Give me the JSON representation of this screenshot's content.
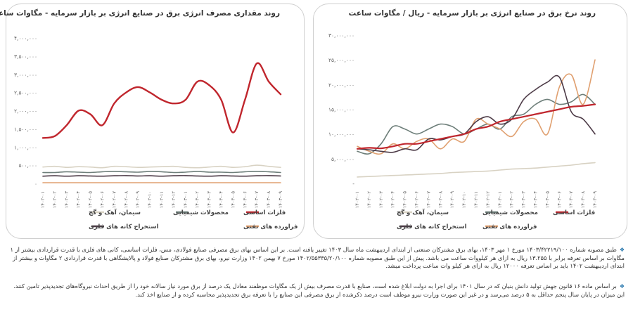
{
  "charts": {
    "left": {
      "title": "روند مقداری مصرف انرژی برق در صنایع انرژی بر بازار سرمایه - مگاوات ساعت"
    },
    "right": {
      "title": "روند نرخ برق در صنایع انرژی بر بازار سرمایه - ریال / مگاوات ساعت"
    }
  },
  "notes": {
    "note1": "طبق مصوبه شماره ۱۴۰۳/۴۲۲۱۹/۱۰۰ مورخ ۱ مهر ۱۴۰۳، بهای برق مشترکان صنعتی از ابتدای اردیبهشت ماه سال ۱۴۰۳ تغییر یافته است. بر این اساس بهای برق مصرفی صنایع فولادی، مس، فلزات اساسی، کانی های فلزی با قدرت قراردادی بیشتر از ۱ مگاوات بر اساس تعرفه برابر با ۱۳.۲۵۵ ریال به ازای هر کیلووات ساعت می باشد. پیش از این طبق مصوبه شماره ۱۴۰۲/۵۵۳۳۵/۲۰/۱۰۰ مورخ ۷ بهمن ۱۴۰۲ وزارت نیرو، بهای برق مشترکان صنایع فولاد و پالایشگاهی با قدرت قراردادی ۲ مگاوات و بیشتر از ابتدای اردیبهشت ۱۴۰۲ باید بر اساس تعرفه ۱۲۰۰۰ ریال به ازای هر کیلو وات ساعت پرداخت میشد.",
    "note2": "بر اساس ماده ۱۶ قانون جهش تولید دانش بنیان که در سال ۱۴۰۱ برای اجرا به دولت ابلاغ شده است، صنایع با قدرت مصرف بیش از یک مگاوات موظفند معادل یک درصد از برق مورد نیاز سالانه خود را از طریق احداث نیروگاه‌های تجدیدپذیر تامین کنند. این میزان در پایان سال پنجم حداقل به ۵ درصد می‌رسد و در غیر این صورت وزارت نیرو موظف است درصد ذکرشده از برق مصرفی این صنایع را با تعرفه برق تجدیدپذیر محاسبه کرده و از صنایع اخذ کند."
  },
  "chart_data": [
    {
      "type": "line",
      "title": "روند مقداری مصرف انرژی برق در صنایع انرژی بر بازار سرمایه - مگاوات ساعت",
      "x": [
        "۱۴۰۲-۰۱",
        "۱۴۰۲-۰۲",
        "۱۴۰۲-۰۳",
        "۱۴۰۲-۰۴",
        "۱۴۰۲-۰۵",
        "۱۴۰۲-۰۶",
        "۱۴۰۲-۰۷",
        "۱۴۰۲-۰۸",
        "۱۴۰۲-۰۹",
        "۱۴۰۲-۱۰",
        "۱۴۰۲-۱۱",
        "۱۴۰۲-۱۲",
        "۱۴۰۳-۰۱",
        "۱۴۰۳-۰۲",
        "۱۴۰۳-۰۳",
        "۱۴۰۳-۰۴",
        "۱۴۰۳-۰۵",
        "۱۴۰۳-۰۶",
        "۱۴۰۳-۰۷",
        "۱۴۰۳-۰۸",
        "۱۴۰۳-۰۹"
      ],
      "y_ticks": [
        "۰",
        "۵۰۰,۰۰۰",
        "۱,۰۰۰,۰۰۰",
        "۱,۵۰۰,۰۰۰",
        "۲,۰۰۰,۰۰۰",
        "۲,۵۰۰,۰۰۰",
        "۳,۰۰۰,۰۰۰",
        "۳,۵۰۰,۰۰۰",
        "۴,۰۰۰,۰۰۰"
      ],
      "ylim": [
        0,
        4000000
      ],
      "grid": false,
      "legend_position": "bottom",
      "series": [
        {
          "name": "فلزات اساسی",
          "color": "#c0262d",
          "width": 2.4,
          "values": [
            1250000,
            1300000,
            1600000,
            2000000,
            1900000,
            1600000,
            2200000,
            2500000,
            2650000,
            2500000,
            2300000,
            2200000,
            2300000,
            2800000,
            2700000,
            2300000,
            1400000,
            2300000,
            3300000,
            2800000,
            2450000
          ]
        },
        {
          "name": "محصولات شیمیایی",
          "color": "#6e7f7a",
          "width": 1.6,
          "values": [
            300000,
            300000,
            320000,
            310000,
            300000,
            320000,
            330000,
            320000,
            310000,
            330000,
            320000,
            300000,
            310000,
            330000,
            310000,
            310000,
            300000,
            320000,
            330000,
            320000,
            300000
          ]
        },
        {
          "name": "سیمان، آهک و گچ",
          "color": "#d8d2c3",
          "width": 1.6,
          "values": [
            450000,
            470000,
            440000,
            460000,
            450000,
            430000,
            470000,
            460000,
            440000,
            450000,
            460000,
            470000,
            440000,
            430000,
            450000,
            470000,
            440000,
            460000,
            500000,
            470000,
            440000
          ]
        },
        {
          "name": "فراورده های نفتی",
          "color": "#e0a070",
          "width": 1.6,
          "values": [
            20000,
            20000,
            20000,
            20000,
            20000,
            20000,
            20000,
            20000,
            20000,
            20000,
            20000,
            20000,
            20000,
            20000,
            20000,
            20000,
            20000,
            20000,
            20000,
            20000,
            20000
          ]
        },
        {
          "name": "استخراج کانه های فلزی",
          "color": "#4d3b47",
          "width": 1.6,
          "values": [
            200000,
            210000,
            200000,
            210000,
            205000,
            200000,
            210000,
            215000,
            205000,
            210000,
            200000,
            210000,
            215000,
            205000,
            200000,
            210000,
            205000,
            200000,
            210000,
            215000,
            205000
          ]
        }
      ]
    },
    {
      "type": "line",
      "title": "روند نرخ برق در صنایع انرژی بر بازار سرمایه - ریال / مگاوات ساعت",
      "x": [
        "۱۴۰۲-۰۱",
        "۱۴۰۲-۰۲",
        "۱۴۰۲-۰۳",
        "۱۴۰۲-۰۴",
        "۱۴۰۲-۰۵",
        "۱۴۰۲-۰۶",
        "۱۴۰۲-۰۷",
        "۱۴۰۲-۰۸",
        "۱۴۰۲-۰۹",
        "۱۴۰۲-۱۰",
        "۱۴۰۲-۱۱",
        "۱۴۰۲-۱۲",
        "۱۴۰۳-۰۱",
        "۱۴۰۳-۰۲",
        "۱۴۰۳-۰۳",
        "۱۴۰۳-۰۴",
        "۱۴۰۳-۰۵",
        "۱۴۰۳-۰۶",
        "۱۴۰۳-۰۷",
        "۱۴۰۳-۰۸",
        "۱۴۰۳-۰۹"
      ],
      "y_ticks": [
        "-",
        "۵,۰۰۰,۰۰۰",
        "۱۰,۰۰۰,۰۰۰",
        "۱۵,۰۰۰,۰۰۰",
        "۲۰,۰۰۰,۰۰۰",
        "۲۵,۰۰۰,۰۰۰",
        "۳۰,۰۰۰,۰۰۰"
      ],
      "ylim": [
        0,
        30000000
      ],
      "grid": false,
      "legend_position": "bottom",
      "series": [
        {
          "name": "فلزات اساسی",
          "color": "#c0262d",
          "width": 2.2,
          "values": [
            7000000,
            7200000,
            7100000,
            7500000,
            8000000,
            8000000,
            8500000,
            9000000,
            9500000,
            10000000,
            11000000,
            11500000,
            12500000,
            13000000,
            13500000,
            14000000,
            14500000,
            15000000,
            15500000,
            15700000,
            16000000
          ]
        },
        {
          "name": "محصولات شیمیایی",
          "color": "#6e7f7a",
          "width": 1.6,
          "values": [
            6500000,
            6000000,
            8000000,
            11500000,
            11000000,
            10000000,
            11000000,
            12000000,
            11500000,
            10000000,
            11000000,
            12000000,
            11000000,
            13500000,
            14000000,
            16000000,
            17000000,
            16000000,
            16500000,
            18000000,
            16000000
          ]
        },
        {
          "name": "سیمان، آهک و گچ",
          "color": "#d8d2c3",
          "width": 1.6,
          "values": [
            1300000,
            1400000,
            1500000,
            1600000,
            1700000,
            1800000,
            1900000,
            2000000,
            2200000,
            2300000,
            2400000,
            2500000,
            2700000,
            2900000,
            3000000,
            3100000,
            3300000,
            3500000,
            3700000,
            4000000,
            4200000
          ]
        },
        {
          "name": "فراورده های نفتی",
          "color": "#e0a070",
          "width": 1.6,
          "values": [
            7500000,
            6500000,
            6000000,
            8000000,
            7000000,
            8500000,
            9000000,
            7000000,
            9000000,
            8500000,
            13000000,
            12000000,
            11000000,
            9500000,
            12500000,
            13000000,
            10000000,
            19500000,
            22000000,
            16000000,
            25000000
          ]
        },
        {
          "name": "استخراج کانه های فلزی",
          "color": "#4d3b47",
          "width": 1.6,
          "values": [
            7000000,
            6800000,
            6500000,
            6300000,
            7000000,
            6800000,
            9000000,
            8800000,
            9500000,
            10000000,
            12500000,
            13500000,
            12000000,
            13000000,
            17000000,
            19000000,
            20500000,
            21500000,
            14500000,
            13000000,
            10000000
          ]
        }
      ]
    }
  ]
}
